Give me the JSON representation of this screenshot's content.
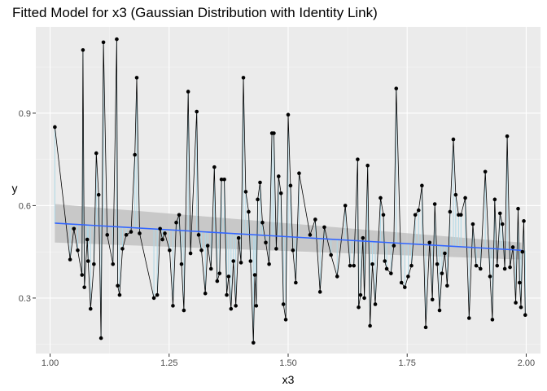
{
  "chart_data": {
    "type": "scatter",
    "title": "Fitted Model for x3 (Gaussian Distribution with Identity Link)",
    "xlabel": "x3",
    "ylabel": "y",
    "xlim": [
      0.97,
      2.03
    ],
    "ylim": [
      0.12,
      1.18
    ],
    "x_ticks": [
      1.0,
      1.25,
      1.5,
      1.75,
      2.0
    ],
    "x_tick_labels": [
      "1.00",
      "1.25",
      "1.50",
      "1.75",
      "2.00"
    ],
    "y_ticks": [
      0.3,
      0.6,
      0.9
    ],
    "y_tick_labels": [
      "0.3",
      "0.6",
      "0.9"
    ],
    "grid": true,
    "legend": "none",
    "colors": {
      "panel_bg": "#ebebeb",
      "grid_major": "#ffffff",
      "grid_minor": "#f5f5f5",
      "points": "#000000",
      "observed_line": "#000000",
      "residual_segments": "#add8e6",
      "fit_line": "#3366ff",
      "confidence_band": "#bfbfbf"
    },
    "fit_line": {
      "x": [
        1.01,
        1.99
      ],
      "y": [
        0.543,
        0.455
      ]
    },
    "confidence_band": {
      "x": [
        1.01,
        1.99
      ],
      "lower": [
        0.48,
        0.425
      ],
      "upper": [
        0.605,
        0.48
      ]
    },
    "x": [
      1.01,
      1.042,
      1.05,
      1.058,
      1.067,
      1.069,
      1.072,
      1.078,
      1.08,
      1.085,
      1.092,
      1.097,
      1.102,
      1.107,
      1.112,
      1.12,
      1.132,
      1.14,
      1.142,
      1.146,
      1.152,
      1.16,
      1.17,
      1.178,
      1.182,
      1.188,
      1.218,
      1.225,
      1.231,
      1.236,
      1.241,
      1.251,
      1.258,
      1.265,
      1.271,
      1.276,
      1.281,
      1.29,
      1.295,
      1.308,
      1.312,
      1.318,
      1.326,
      1.331,
      1.338,
      1.345,
      1.351,
      1.356,
      1.36,
      1.366,
      1.371,
      1.375,
      1.38,
      1.385,
      1.39,
      1.396,
      1.401,
      1.406,
      1.411,
      1.417,
      1.421,
      1.427,
      1.43,
      1.433,
      1.436,
      1.441,
      1.446,
      1.453,
      1.46,
      1.466,
      1.47,
      1.475,
      1.48,
      1.485,
      1.49,
      1.495,
      1.5,
      1.505,
      1.51,
      1.516,
      1.523,
      1.546,
      1.557,
      1.567,
      1.576,
      1.59,
      1.603,
      1.62,
      1.63,
      1.638,
      1.646,
      1.648,
      1.652,
      1.657,
      1.66,
      1.667,
      1.672,
      1.677,
      1.683,
      1.694,
      1.7,
      1.703,
      1.707,
      1.716,
      1.722,
      1.727,
      1.738,
      1.745,
      1.752,
      1.759,
      1.767,
      1.774,
      1.781,
      1.789,
      1.797,
      1.803,
      1.808,
      1.813,
      1.818,
      1.823,
      1.829,
      1.834,
      1.84,
      1.847,
      1.852,
      1.858,
      1.863,
      1.872,
      1.88,
      1.888,
      1.895,
      1.904,
      1.914,
      1.924,
      1.929,
      1.934,
      1.939,
      1.945,
      1.95,
      1.955,
      1.96,
      1.966,
      1.972,
      1.978,
      1.983,
      1.986,
      1.989,
      1.992,
      1.995,
      1.998
    ],
    "y": [
      0.855,
      0.425,
      0.525,
      0.455,
      0.375,
      1.105,
      0.335,
      0.49,
      0.42,
      0.265,
      0.41,
      0.77,
      0.635,
      0.17,
      1.13,
      0.505,
      0.41,
      1.14,
      0.34,
      0.31,
      0.46,
      0.505,
      0.515,
      0.765,
      1.015,
      0.51,
      0.3,
      0.31,
      0.525,
      0.49,
      0.51,
      0.455,
      0.275,
      0.545,
      0.57,
      0.41,
      0.26,
      0.97,
      0.445,
      0.905,
      0.505,
      0.455,
      0.315,
      0.47,
      0.395,
      0.725,
      0.355,
      0.38,
      0.685,
      0.685,
      0.31,
      0.37,
      0.265,
      0.42,
      0.275,
      0.495,
      0.415,
      1.015,
      0.645,
      0.58,
      0.42,
      0.155,
      0.375,
      0.275,
      0.62,
      0.675,
      0.545,
      0.48,
      0.41,
      0.835,
      0.835,
      0.46,
      0.695,
      0.64,
      0.28,
      0.23,
      0.895,
      0.665,
      0.455,
      0.35,
      0.705,
      0.505,
      0.555,
      0.32,
      0.53,
      0.44,
      0.37,
      0.6,
      0.405,
      0.405,
      0.75,
      0.27,
      0.31,
      0.495,
      0.3,
      0.73,
      0.21,
      0.41,
      0.28,
      0.625,
      0.57,
      0.42,
      0.395,
      0.38,
      0.47,
      0.98,
      0.35,
      0.335,
      0.37,
      0.405,
      0.57,
      0.585,
      0.665,
      0.205,
      0.48,
      0.295,
      0.605,
      0.41,
      0.26,
      0.38,
      0.445,
      0.34,
      0.58,
      0.815,
      0.635,
      0.57,
      0.57,
      0.625,
      0.235,
      0.54,
      0.405,
      0.395,
      0.71,
      0.37,
      0.23,
      0.62,
      0.405,
      0.575,
      0.54,
      0.395,
      0.825,
      0.4,
      0.465,
      0.285,
      0.59,
      0.35,
      0.27,
      0.45,
      0.55,
      0.245
    ]
  }
}
